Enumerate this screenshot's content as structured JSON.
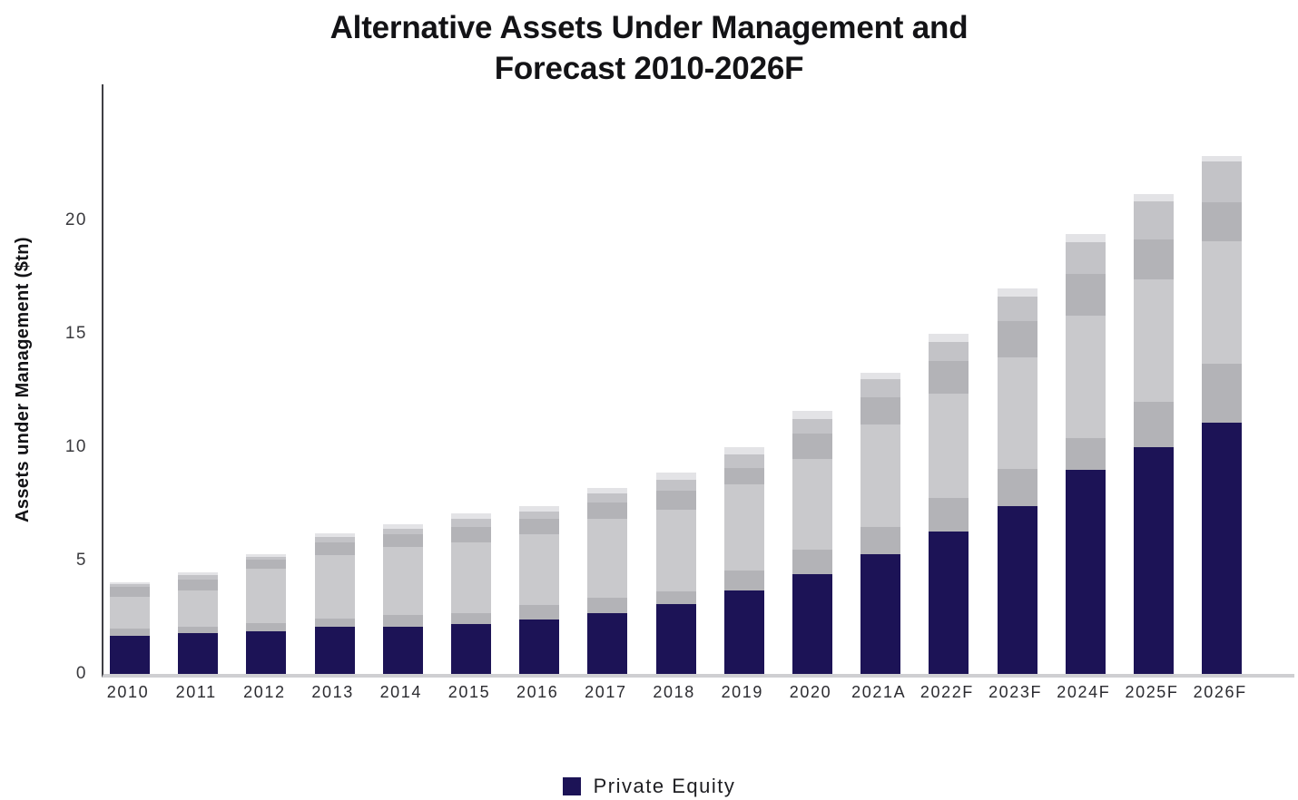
{
  "page": {
    "background": "#ffffff"
  },
  "title": {
    "line1": "Alternative Assets Under Management and",
    "line2": "Forecast 2010-2026F"
  },
  "y_axis": {
    "label": "Assets under Management ($tn)",
    "tick_values": [
      0,
      5,
      10,
      15,
      20
    ]
  },
  "legend": {
    "entries": [
      {
        "label": "Private Equity",
        "color": "#1c1356"
      }
    ]
  },
  "colors": {
    "private_equity_navy": "#1c1356",
    "gray_medium": "#b3b3b7",
    "gray_light": "#c9c9cc",
    "gray_light_2": "#c3c3c7",
    "gray_very_light": "#e3e3e6",
    "axis_line": "#3f3f44",
    "baseline": "#cfcfd2",
    "title_text": "#131316"
  },
  "chart_data": {
    "type": "bar",
    "stacked": true,
    "title": "Alternative Assets Under Management and Forecast 2010-2026F",
    "xlabel": "",
    "ylabel": "Assets under Management ($tn)",
    "ylim": [
      0,
      25
    ],
    "y_unit": "$tn",
    "grid": false,
    "legend_position": "bottom",
    "legend_visible_entries": [
      "Private Equity"
    ],
    "categories": [
      "2010",
      "2011",
      "2012",
      "2013",
      "2014",
      "2015",
      "2016",
      "2017",
      "2018",
      "2019",
      "2020",
      "2021A",
      "2022F",
      "2023F",
      "2024F",
      "2025F",
      "2026F"
    ],
    "series": [
      {
        "name": "Private Equity",
        "id": "private-equity",
        "color": "#1c1356",
        "in_legend": true,
        "values": [
          1.7,
          1.8,
          1.9,
          2.1,
          2.1,
          2.2,
          2.4,
          2.7,
          3.1,
          3.7,
          4.4,
          5.3,
          6.3,
          7.4,
          9.0,
          10.0,
          11.1
        ]
      },
      {
        "name": "",
        "id": "unlabeled-gray-1",
        "color": "#b3b3b7",
        "in_legend": false,
        "values": [
          0.3,
          0.3,
          0.35,
          0.35,
          0.5,
          0.5,
          0.65,
          0.65,
          0.55,
          0.85,
          1.1,
          1.2,
          1.45,
          1.65,
          1.4,
          2.0,
          2.6
        ]
      },
      {
        "name": "",
        "id": "unlabeled-gray-2",
        "color": "#c9c9cc",
        "in_legend": false,
        "values": [
          1.4,
          1.6,
          2.4,
          2.8,
          3.0,
          3.1,
          3.1,
          3.5,
          3.6,
          3.8,
          4.0,
          4.5,
          4.6,
          4.9,
          5.4,
          5.4,
          5.4
        ]
      },
      {
        "name": "",
        "id": "unlabeled-gray-3",
        "color": "#b3b3b7",
        "in_legend": false,
        "values": [
          0.45,
          0.45,
          0.4,
          0.55,
          0.55,
          0.7,
          0.7,
          0.7,
          0.85,
          0.75,
          1.1,
          1.2,
          1.45,
          1.6,
          1.85,
          1.75,
          1.7
        ]
      },
      {
        "name": "",
        "id": "unlabeled-gray-4",
        "color": "#c3c3c7",
        "in_legend": false,
        "values": [
          0.1,
          0.2,
          0.1,
          0.25,
          0.25,
          0.35,
          0.3,
          0.4,
          0.45,
          0.6,
          0.65,
          0.8,
          0.85,
          1.1,
          1.4,
          1.7,
          1.8
        ]
      },
      {
        "name": "",
        "id": "unlabeled-gray-5",
        "color": "#e3e3e6",
        "in_legend": false,
        "values": [
          0.1,
          0.15,
          0.15,
          0.15,
          0.2,
          0.25,
          0.25,
          0.25,
          0.35,
          0.3,
          0.35,
          0.3,
          0.35,
          0.35,
          0.35,
          0.3,
          0.25
        ]
      }
    ],
    "totals": [
      4.05,
      4.5,
      5.3,
      6.2,
      6.6,
      7.1,
      7.4,
      8.2,
      8.9,
      10.0,
      11.6,
      13.3,
      15.0,
      17.0,
      19.4,
      21.15,
      22.85
    ]
  }
}
